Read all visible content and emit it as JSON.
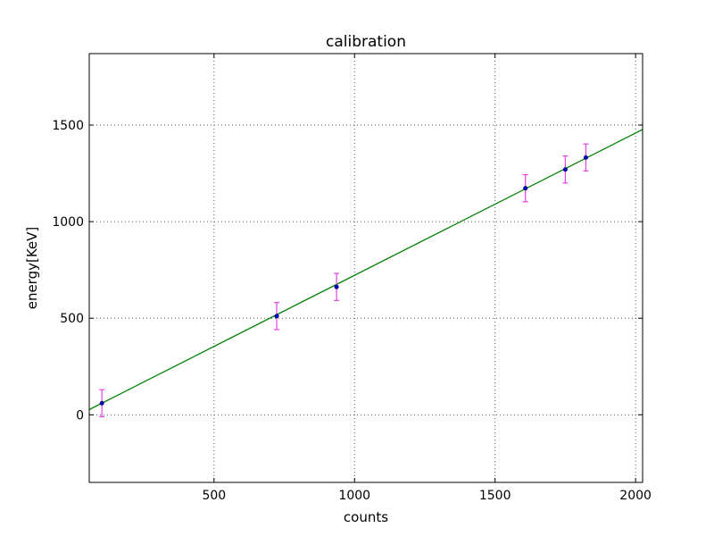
{
  "chart_data": {
    "type": "scatter",
    "title": "calibration",
    "xlabel": "counts",
    "ylabel": "energy[KeV]",
    "xlim": [
      56,
      2025
    ],
    "ylim": [
      -350,
      1870
    ],
    "xticks": [
      500,
      1000,
      1500,
      2000
    ],
    "yticks": [
      0,
      500,
      1000,
      1500
    ],
    "grid": true,
    "points": [
      {
        "x": 101,
        "y": 60,
        "err": 70
      },
      {
        "x": 723,
        "y": 511,
        "err": 70
      },
      {
        "x": 936,
        "y": 662,
        "err": 70
      },
      {
        "x": 1608,
        "y": 1173,
        "err": 70
      },
      {
        "x": 1750,
        "y": 1270,
        "err": 70
      },
      {
        "x": 1823,
        "y": 1332,
        "err": 70
      }
    ],
    "fit_line": {
      "x": [
        56,
        2025
      ],
      "y": [
        27,
        1477
      ]
    },
    "colors": {
      "points": "#0000cc",
      "errorbars": "#e542e5",
      "fit": "#008000",
      "grid": "#555555"
    }
  }
}
